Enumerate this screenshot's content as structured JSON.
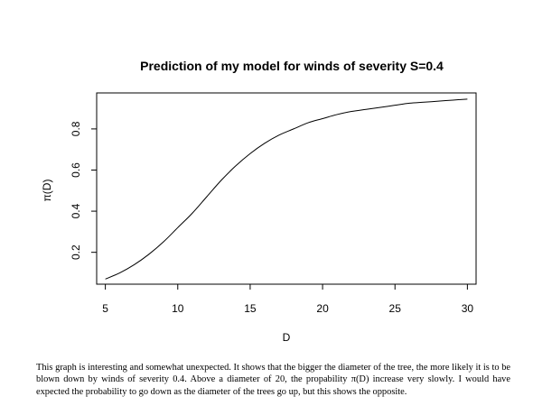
{
  "chart_data": {
    "type": "line",
    "title": "Prediction of my model for winds of severity S=0.4",
    "xlabel": "D",
    "ylabel": "π(D)",
    "xlim": [
      4.4,
      30.6
    ],
    "ylim": [
      0.045,
      0.975
    ],
    "x_ticks": [
      5,
      10,
      15,
      20,
      25,
      30
    ],
    "x_tick_labels": [
      "5",
      "10",
      "15",
      "20",
      "25",
      "30"
    ],
    "y_ticks": [
      0.2,
      0.4,
      0.6,
      0.8
    ],
    "y_tick_labels": [
      "0.2",
      "0.4",
      "0.6",
      "0.8"
    ],
    "grid": false,
    "series": [
      {
        "x": [
          5,
          6,
          7,
          8,
          9,
          10,
          11,
          12,
          13,
          14,
          15,
          16,
          17,
          18,
          19,
          20,
          21,
          22,
          23,
          24,
          25,
          26,
          27,
          28,
          29,
          30
        ],
        "y": [
          0.07,
          0.1,
          0.14,
          0.19,
          0.25,
          0.32,
          0.39,
          0.47,
          0.55,
          0.62,
          0.68,
          0.73,
          0.77,
          0.8,
          0.83,
          0.85,
          0.87,
          0.885,
          0.895,
          0.905,
          0.915,
          0.925,
          0.93,
          0.935,
          0.94,
          0.945
        ],
        "color": "#000000"
      }
    ]
  },
  "caption": "This graph is interesting and somewhat unexpected. It shows that the bigger the diameter of the tree, the more likely it is to be blown down by winds of severity 0.4. Above a diameter of 20, the propability π(D) increase very slowly. I would have expected the probability to go down as the diameter of the trees go up, but this shows the opposite."
}
